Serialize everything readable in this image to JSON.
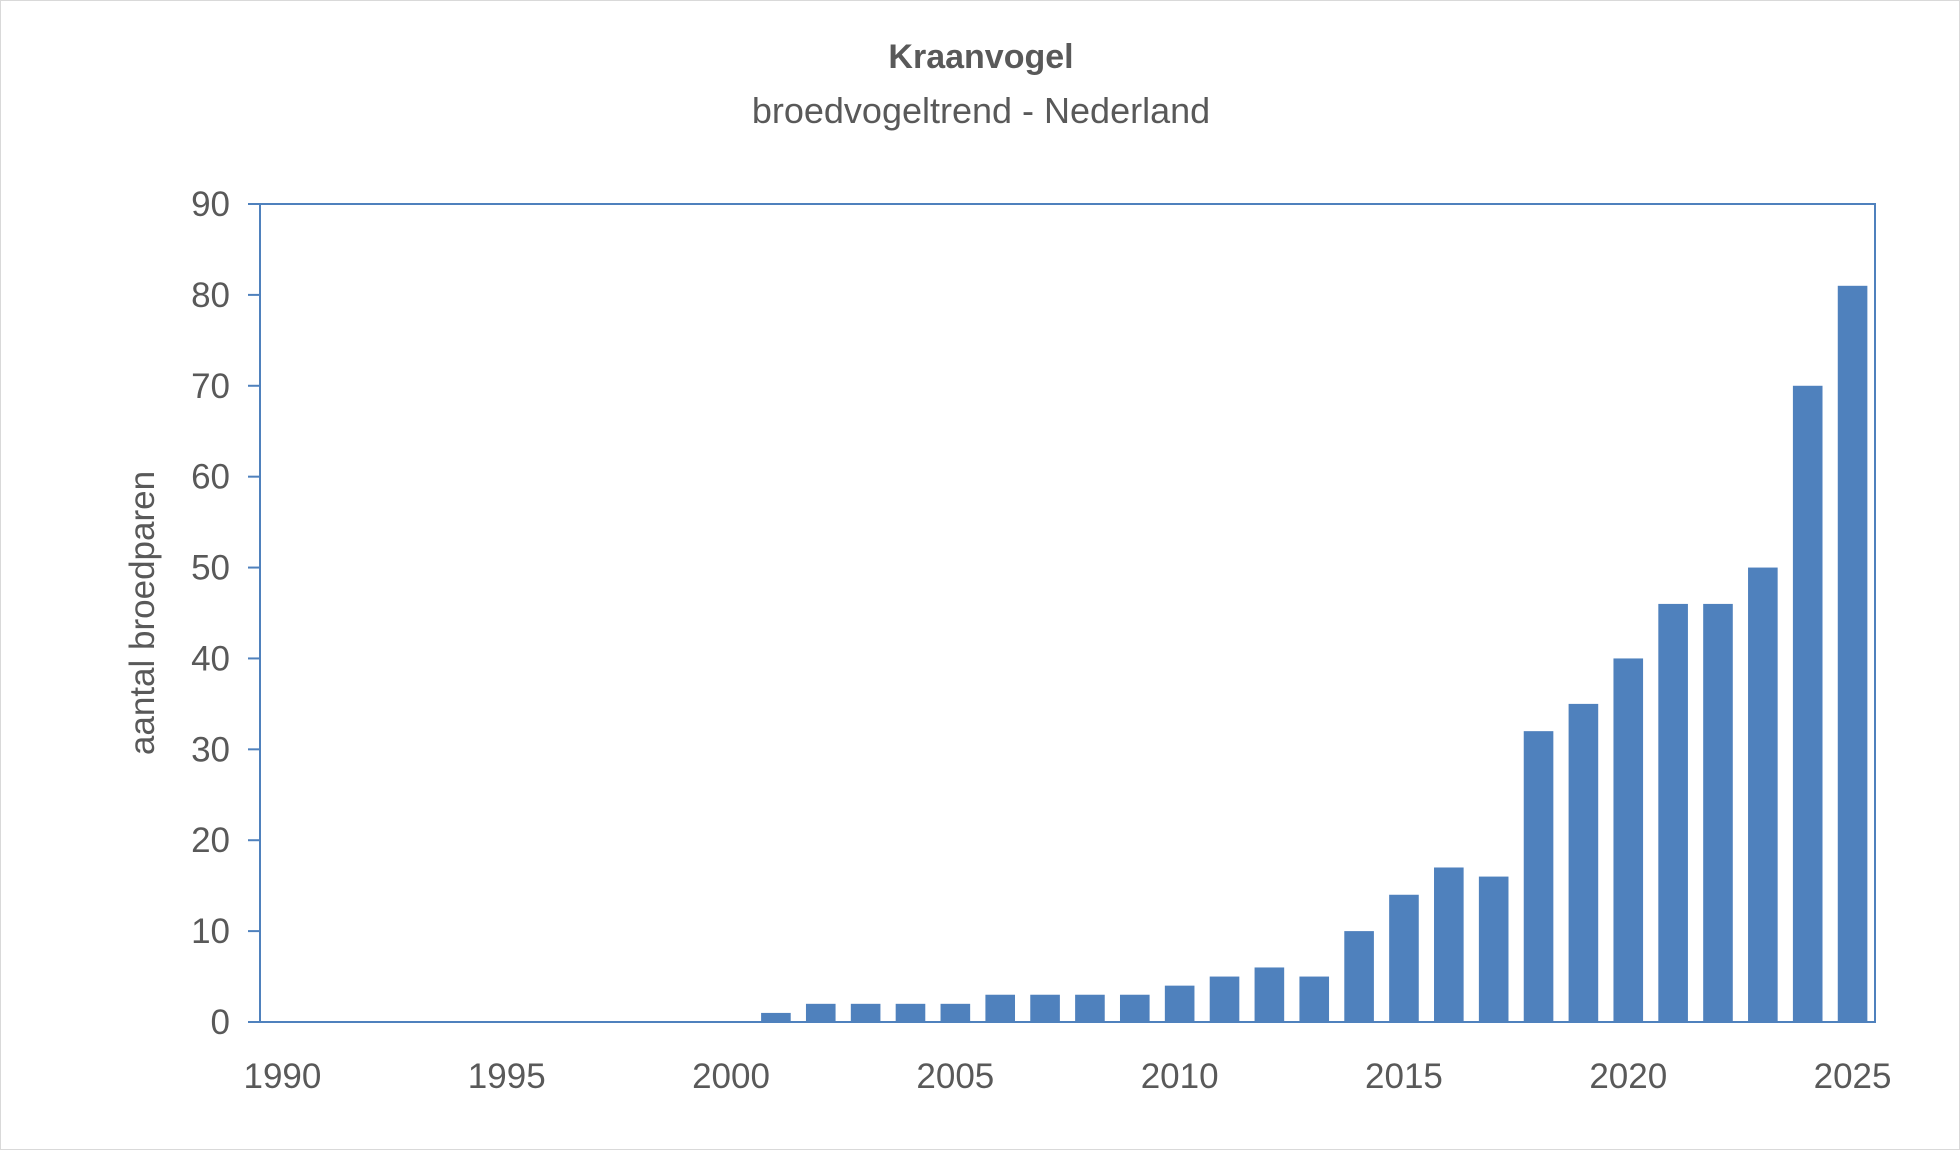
{
  "chart_data": {
    "type": "bar",
    "title": "Kraanvogel",
    "subtitle": "broedvogeltrend - Nederland",
    "xlabel": "",
    "ylabel": "aantal broedparen",
    "xlim": [
      1990,
      2025
    ],
    "ylim": [
      0,
      90
    ],
    "x_ticks": [
      "1990",
      "1995",
      "2000",
      "2005",
      "2010",
      "2015",
      "2020",
      "2025"
    ],
    "y_ticks": [
      "0",
      "10",
      "20",
      "30",
      "40",
      "50",
      "60",
      "70",
      "80",
      "90"
    ],
    "grid": false,
    "legend": "none",
    "bar_color": "#4f81bd",
    "axis_color": "#4f81bd",
    "x": [
      1990,
      1991,
      1992,
      1993,
      1994,
      1995,
      1996,
      1997,
      1998,
      1999,
      2000,
      2001,
      2002,
      2003,
      2004,
      2005,
      2006,
      2007,
      2008,
      2009,
      2010,
      2011,
      2012,
      2013,
      2014,
      2015,
      2016,
      2017,
      2018,
      2019,
      2020,
      2021,
      2022,
      2023,
      2024,
      2025
    ],
    "values": [
      0,
      0,
      0,
      0,
      0,
      0,
      0,
      0,
      0,
      0,
      0,
      1,
      2,
      2,
      2,
      2,
      3,
      3,
      3,
      3,
      4,
      5,
      6,
      5,
      10,
      14,
      17,
      16,
      32,
      35,
      40,
      46,
      46,
      50,
      70,
      81
    ]
  }
}
